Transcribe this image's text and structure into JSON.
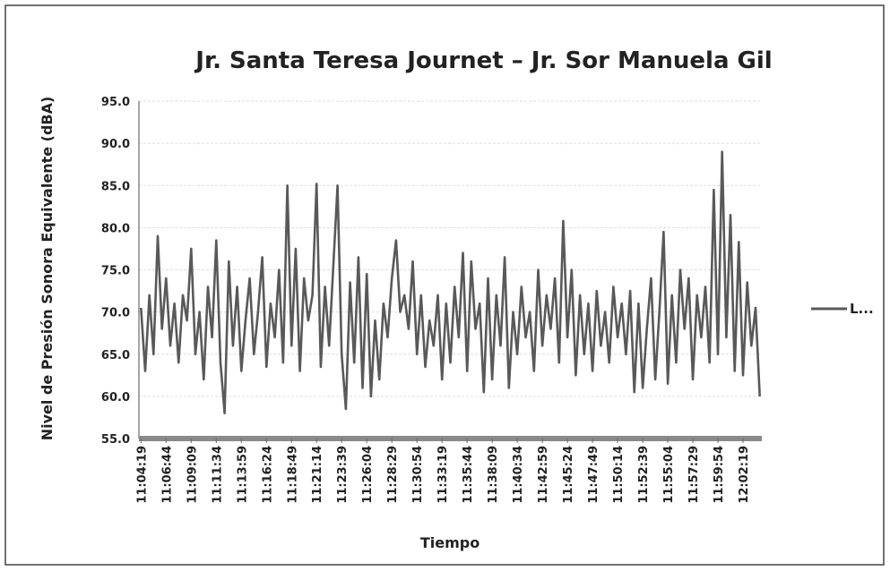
{
  "chart_data": {
    "type": "line",
    "title": "Jr. Santa Teresa Journet – Jr. Sor Manuela Gil",
    "x_label": "Tiempo",
    "y_label": "Nivel  de Presión Sonora Equivalente (dBA)",
    "categories": [
      "11:04:19",
      null,
      null,
      null,
      null,
      null,
      "11:06:44",
      null,
      null,
      null,
      null,
      null,
      "11:09:09",
      null,
      null,
      null,
      null,
      null,
      "11:11:34",
      null,
      null,
      null,
      null,
      null,
      "11:13:59",
      null,
      null,
      null,
      null,
      null,
      "11:16:24",
      null,
      null,
      null,
      null,
      null,
      "11:18:49",
      null,
      null,
      null,
      null,
      null,
      "11:21:14",
      null,
      null,
      null,
      null,
      null,
      "11:23:39",
      null,
      null,
      null,
      null,
      null,
      "11:26:04",
      null,
      null,
      null,
      null,
      null,
      "11:28:29",
      null,
      null,
      null,
      null,
      null,
      "11:30:54",
      null,
      null,
      null,
      null,
      null,
      "11:33:19",
      null,
      null,
      null,
      null,
      null,
      "11:35:44",
      null,
      null,
      null,
      null,
      null,
      "11:38:09",
      null,
      null,
      null,
      null,
      null,
      "11:40:34",
      null,
      null,
      null,
      null,
      null,
      "11:42:59",
      null,
      null,
      null,
      null,
      null,
      "11:45:24",
      null,
      null,
      null,
      null,
      null,
      "11:47:49",
      null,
      null,
      null,
      null,
      null,
      "11:50:14",
      null,
      null,
      null,
      null,
      null,
      "11:52:39",
      null,
      null,
      null,
      null,
      null,
      "11:55:04",
      null,
      null,
      null,
      null,
      null,
      "11:57:29",
      null,
      null,
      null,
      null,
      null,
      "11:59:54",
      null,
      null,
      null,
      null,
      null,
      "12:02:19",
      null,
      null,
      null,
      null
    ],
    "series": [
      {
        "name": "L...",
        "color": "#595959",
        "values": [
          70.5,
          63,
          72,
          65,
          79,
          68,
          74,
          66,
          71,
          64,
          72,
          69,
          77.5,
          65,
          70,
          62,
          73,
          67,
          78.5,
          64,
          58,
          76,
          66,
          73,
          63,
          69,
          74,
          65,
          70,
          76.5,
          63.5,
          71,
          67,
          75,
          64,
          85,
          66,
          77.5,
          63,
          74,
          69,
          72,
          85.2,
          63.5,
          73,
          66,
          75.5,
          85,
          65,
          58.5,
          73.5,
          64,
          76.5,
          61,
          74.5,
          60,
          69,
          62,
          71,
          67,
          74,
          78.5,
          70,
          72,
          68,
          76,
          65,
          72,
          63.5,
          69,
          66,
          72,
          62,
          71,
          64,
          73,
          67,
          77,
          63,
          76,
          68,
          71,
          60.5,
          74,
          62,
          72,
          66,
          76.5,
          61,
          70,
          65,
          73,
          67,
          70,
          63,
          75,
          66,
          72,
          68,
          74,
          64,
          80.8,
          67,
          75,
          62.5,
          72,
          65,
          71,
          63,
          72.5,
          66,
          70,
          64,
          73,
          67,
          71,
          65,
          72.5,
          60.5,
          71,
          61,
          68,
          74,
          62,
          70,
          79.5,
          61.5,
          72,
          64,
          75,
          68,
          74,
          62,
          72,
          67,
          73,
          64,
          84.5,
          65,
          89,
          67,
          81.5,
          63,
          78.3,
          62.5,
          73.5,
          66,
          70.5,
          60
        ]
      }
    ],
    "ylim": [
      55,
      95
    ],
    "yticks": [
      {
        "value": 55,
        "label": "55.0"
      },
      {
        "value": 60,
        "label": "60.0"
      },
      {
        "value": 65,
        "label": "65.0"
      },
      {
        "value": 70,
        "label": "70.0"
      },
      {
        "value": 75,
        "label": "75.0"
      },
      {
        "value": 80,
        "label": "80.0"
      },
      {
        "value": 85,
        "label": "85.0"
      },
      {
        "value": 90,
        "label": "90.0"
      },
      {
        "value": 95,
        "label": "95.0"
      }
    ],
    "grid": true,
    "legend": "right"
  }
}
